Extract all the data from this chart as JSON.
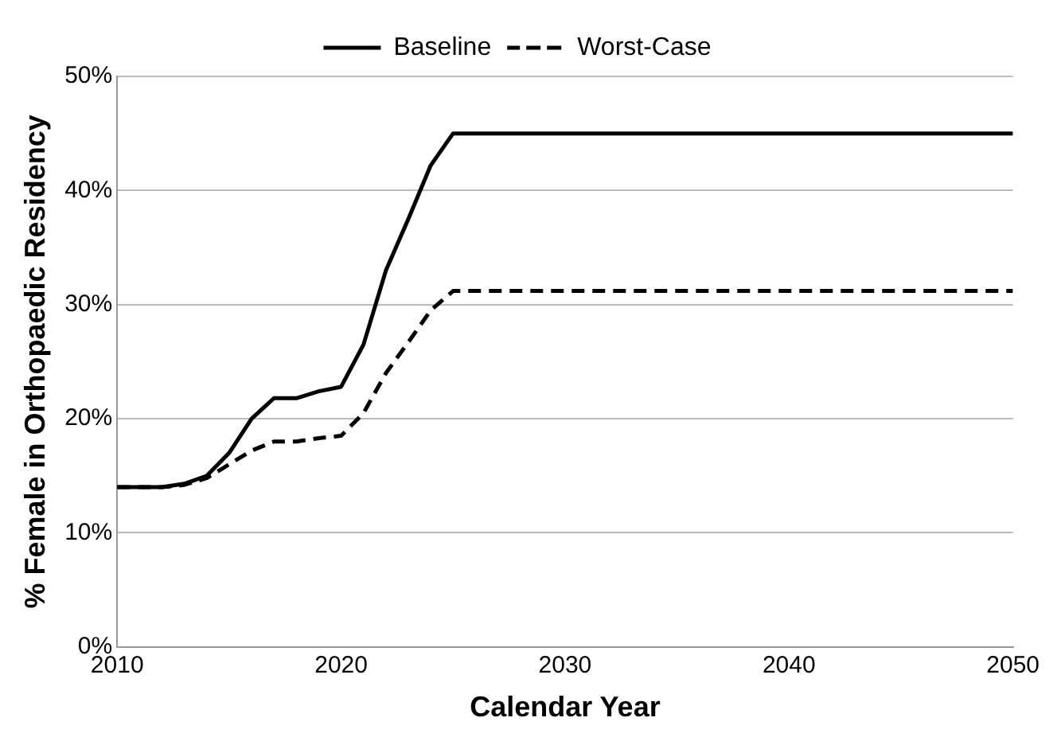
{
  "chart_data": {
    "type": "line",
    "xlabel": "Calendar Year",
    "ylabel": "% Female in Orthopaedic Residency",
    "x": [
      2010,
      2011,
      2012,
      2013,
      2014,
      2015,
      2016,
      2017,
      2018,
      2019,
      2020,
      2021,
      2022,
      2023,
      2024,
      2025,
      2050
    ],
    "series": [
      {
        "name": "Baseline",
        "color": "#000000",
        "line_style": "solid",
        "values": [
          14,
          14,
          14,
          14.3,
          15,
          17,
          20,
          21.8,
          21.8,
          22.4,
          22.8,
          26.5,
          33,
          37.5,
          42.2,
          45,
          45
        ]
      },
      {
        "name": "Worst-Case",
        "color": "#000000",
        "line_style": "dashed",
        "values": [
          14,
          14,
          14,
          14.2,
          14.8,
          16,
          17.2,
          18,
          18,
          18.3,
          18.5,
          20.5,
          24,
          26.7,
          29.5,
          31.2,
          31.2
        ]
      }
    ],
    "xlim": [
      2010,
      2050
    ],
    "xticks": [
      2010,
      2020,
      2030,
      2040,
      2050
    ],
    "ylim": [
      0,
      50
    ],
    "yticks": [
      {
        "value": 0,
        "label": "0%"
      },
      {
        "value": 10,
        "label": "10%"
      },
      {
        "value": 20,
        "label": "20%"
      },
      {
        "value": 30,
        "label": "30%"
      },
      {
        "value": 40,
        "label": "40%"
      },
      {
        "value": 50,
        "label": "50%"
      }
    ],
    "grid": "y",
    "legend": "top",
    "marker": "none"
  }
}
